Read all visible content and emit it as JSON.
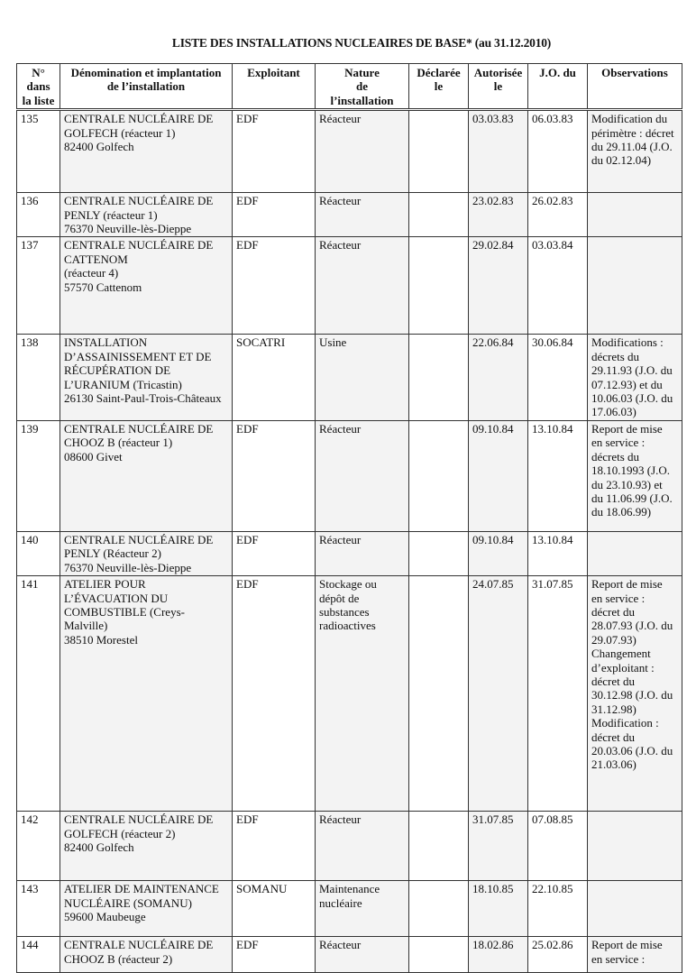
{
  "title": "LISTE DES INSTALLATIONS NUCLEAIRES DE BASE* (au 31.12.2010)",
  "columns": [
    "N° dans\nla liste",
    "Dénomination et implantation\nde l’installation",
    "Exploitant",
    "Nature\nde\nl’installation",
    "Déclarée le",
    "Autorisée\nle",
    "J.O. du",
    "Observations"
  ],
  "rows": [
    {
      "no": "135",
      "name": "CENTRALE NUCLÉAIRE DE\nGOLFECH (réacteur 1)\n82400 Golfech",
      "operator": "EDF",
      "nature": "Réacteur",
      "declared": "",
      "authorized": "03.03.83",
      "jo": "06.03.83",
      "observations": "Modification du\npérimètre : décret\ndu 29.11.04 (J.O.\ndu 02.12.04)"
    },
    {
      "no": "136",
      "name": "CENTRALE NUCLÉAIRE DE\nPENLY (réacteur 1)\n76370 Neuville-lès-Dieppe",
      "operator": "EDF",
      "nature": "Réacteur",
      "declared": "",
      "authorized": "23.02.83",
      "jo": "26.02.83",
      "observations": ""
    },
    {
      "no": "137",
      "name": "CENTRALE NUCLÉAIRE DE\nCATTENOM\n(réacteur 4)\n57570 Cattenom",
      "operator": "EDF",
      "nature": "Réacteur",
      "declared": "",
      "authorized": "29.02.84",
      "jo": "03.03.84",
      "observations": ""
    },
    {
      "no": "138",
      "name": "INSTALLATION\nD’ASSAINISSEMENT ET DE\nRÉCUPÉRATION DE\nL’URANIUM (Tricastin)\n26130 Saint-Paul-Trois-Châteaux",
      "operator": "SOCATRI",
      "nature": "Usine",
      "declared": "",
      "authorized": "22.06.84",
      "jo": "30.06.84",
      "observations": "Modifications :\ndécrets du\n29.11.93 (J.O. du\n07.12.93) et du\n10.06.03 (J.O. du\n17.06.03)"
    },
    {
      "no": "139",
      "name": "CENTRALE NUCLÉAIRE DE\nCHOOZ B (réacteur 1)\n08600 Givet",
      "operator": "EDF",
      "nature": "Réacteur",
      "declared": "",
      "authorized": "09.10.84",
      "jo": "13.10.84",
      "observations": "Report de mise\nen service :\ndécrets du\n18.10.1993 (J.O.\ndu 23.10.93) et\ndu 11.06.99 (J.O.\ndu 18.06.99)"
    },
    {
      "no": "140",
      "name": "CENTRALE NUCLÉAIRE DE\nPENLY (Réacteur 2)\n76370 Neuville-lès-Dieppe",
      "operator": "EDF",
      "nature": "Réacteur",
      "declared": "",
      "authorized": "09.10.84",
      "jo": "13.10.84",
      "observations": ""
    },
    {
      "no": "141",
      "name": "ATELIER POUR\nL’ÉVACUATION DU\nCOMBUSTIBLE (Creys-\nMalville)\n38510 Morestel",
      "operator": "EDF",
      "nature": "Stockage ou\ndépôt de\nsubstances\nradioactives",
      "declared": "",
      "authorized": "24.07.85",
      "jo": "31.07.85",
      "observations": "Report de mise\nen service :\ndécret du\n28.07.93 (J.O. du\n29.07.93)\nChangement\nd’exploitant :\ndécret du\n30.12.98 (J.O. du\n31.12.98)\nModification :\ndécret du\n20.03.06 (J.O. du\n21.03.06)"
    },
    {
      "no": "142",
      "name": "CENTRALE NUCLÉAIRE DE\nGOLFECH (réacteur 2)\n82400 Golfech",
      "operator": "EDF",
      "nature": "Réacteur",
      "declared": "",
      "authorized": "31.07.85",
      "jo": "07.08.85",
      "observations": ""
    },
    {
      "no": "143",
      "name": "ATELIER DE MAINTENANCE\nNUCLÉAIRE (SOMANU)\n59600 Maubeuge",
      "operator": "SOMANU",
      "nature": "Maintenance\nnucléaire",
      "declared": "",
      "authorized": "18.10.85",
      "jo": "22.10.85",
      "observations": ""
    },
    {
      "no": "144",
      "name": "CENTRALE NUCLÉAIRE DE\nCHOOZ B (réacteur 2)",
      "operator": "EDF",
      "nature": "Réacteur",
      "declared": "",
      "authorized": "18.02.86",
      "jo": "25.02.86",
      "observations": "Report de mise\nen service :"
    }
  ]
}
